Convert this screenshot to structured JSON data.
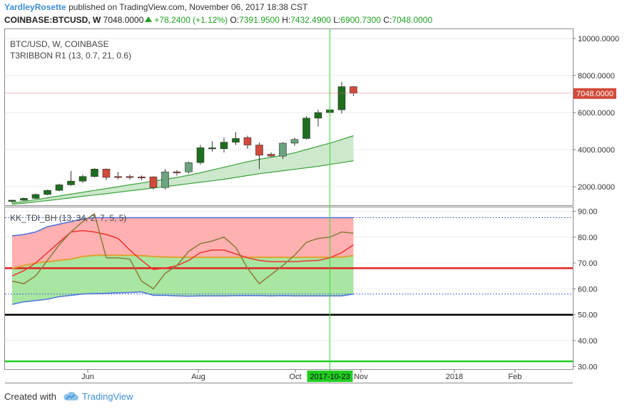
{
  "header": {
    "author": "YardleyRosette",
    "published_text": "published on TradingView.com, November 06, 2017 18:38 CST"
  },
  "symbol_bar": {
    "symbol": "COINBASE:BTCUSD, W",
    "last": "7048.0000",
    "change": "+78.2400 (+1.12%)",
    "o_label": "O:",
    "o": "7391.9500",
    "h_label": "H:",
    "h": "7432.4900",
    "l_label": "L:",
    "l": "6900.7300",
    "c_label": "C:",
    "c": "7048.0000"
  },
  "footer": {
    "created_with": "Created with",
    "brand": "TradingView"
  },
  "colors": {
    "bull": "#1e6e1e",
    "bull_light": "#6aa37e",
    "bear": "#d24a3a",
    "ribbon_fill": "#cde8cc",
    "ribbon_line": "#3aa33a",
    "cursor": "#33dd33",
    "tdi_red_zone": "#ffb0b0",
    "tdi_green_zone": "#a9e6a1",
    "tdi_band": "#4a6ee0",
    "tdi_rsi": "#8a7a3a",
    "tdi_signal": "#ee3333",
    "tdi_mid": "#e0a030",
    "level_red": "#e02020",
    "level_black": "#000000",
    "level_green": "#22cc22"
  },
  "chart_data": [
    {
      "type": "candlestick",
      "title": "BTC/USD, W, COINBASE",
      "indicator": "T3RIBBON R1 (13, 0.7, 21, 0.6)",
      "x_tick_labels": [
        "Jun",
        "Aug",
        "Oct",
        "Nov",
        "2018",
        "Feb"
      ],
      "cursor_label": "2017-10-23",
      "y_ticks": [
        "2000.0000",
        "4000.0000",
        "6000.0000",
        "8000.0000",
        "10000.0000"
      ],
      "ylim": [
        1000,
        10500
      ],
      "last_price_label": "7048.0000",
      "last_price": 7048,
      "candles": [
        {
          "o": 1200,
          "h": 1300,
          "l": 1130,
          "c": 1270,
          "color": "bull"
        },
        {
          "o": 1270,
          "h": 1420,
          "l": 1230,
          "c": 1370,
          "color": "bull"
        },
        {
          "o": 1370,
          "h": 1640,
          "l": 1340,
          "c": 1580,
          "color": "bull"
        },
        {
          "o": 1580,
          "h": 1830,
          "l": 1540,
          "c": 1800,
          "color": "bull"
        },
        {
          "o": 1800,
          "h": 2160,
          "l": 1760,
          "c": 2100,
          "color": "bull"
        },
        {
          "o": 2100,
          "h": 2850,
          "l": 2050,
          "c": 2300,
          "color": "bull"
        },
        {
          "o": 2300,
          "h": 2650,
          "l": 2200,
          "c": 2550,
          "color": "bull"
        },
        {
          "o": 2550,
          "h": 3000,
          "l": 2500,
          "c": 2950,
          "color": "bull"
        },
        {
          "o": 2950,
          "h": 2980,
          "l": 2350,
          "c": 2500,
          "color": "bear"
        },
        {
          "o": 2500,
          "h": 2800,
          "l": 2400,
          "c": 2550,
          "color": "bear"
        },
        {
          "o": 2550,
          "h": 2650,
          "l": 2380,
          "c": 2500,
          "color": "bear"
        },
        {
          "o": 2500,
          "h": 2600,
          "l": 2350,
          "c": 2530,
          "color": "bear"
        },
        {
          "o": 2530,
          "h": 2560,
          "l": 1850,
          "c": 1950,
          "color": "bear"
        },
        {
          "o": 1950,
          "h": 2950,
          "l": 1850,
          "c": 2800,
          "color": "bull_light"
        },
        {
          "o": 2750,
          "h": 2900,
          "l": 2600,
          "c": 2800,
          "color": "bear"
        },
        {
          "o": 2800,
          "h": 3350,
          "l": 2700,
          "c": 3300,
          "color": "bull_light"
        },
        {
          "o": 3300,
          "h": 4250,
          "l": 3200,
          "c": 4100,
          "color": "bull"
        },
        {
          "o": 4100,
          "h": 4450,
          "l": 3900,
          "c": 4050,
          "color": "bull"
        },
        {
          "o": 4050,
          "h": 4650,
          "l": 3850,
          "c": 4400,
          "color": "bull"
        },
        {
          "o": 4400,
          "h": 4950,
          "l": 4250,
          "c": 4600,
          "color": "bull"
        },
        {
          "o": 4650,
          "h": 4750,
          "l": 4050,
          "c": 4250,
          "color": "bear"
        },
        {
          "o": 4250,
          "h": 4380,
          "l": 2950,
          "c": 3700,
          "color": "bear"
        },
        {
          "o": 3750,
          "h": 3850,
          "l": 3600,
          "c": 3650,
          "color": "bear"
        },
        {
          "o": 3650,
          "h": 4400,
          "l": 3500,
          "c": 4350,
          "color": "bull_light"
        },
        {
          "o": 4350,
          "h": 4650,
          "l": 4200,
          "c": 4550,
          "color": "bull_light"
        },
        {
          "o": 4600,
          "h": 5800,
          "l": 4550,
          "c": 5700,
          "color": "bull"
        },
        {
          "o": 5700,
          "h": 6150,
          "l": 5250,
          "c": 6000,
          "color": "bull"
        },
        {
          "o": 6000,
          "h": 6200,
          "l": 5450,
          "c": 6150,
          "color": "bull"
        },
        {
          "o": 6150,
          "h": 7650,
          "l": 5950,
          "c": 7400,
          "color": "bull"
        },
        {
          "o": 7400,
          "h": 7430,
          "l": 6900,
          "c": 7048,
          "color": "bear"
        }
      ],
      "ribbon_upper": [
        1120,
        1200,
        1300,
        1400,
        1500,
        1600,
        1700,
        1800,
        1900,
        2000,
        2100,
        2200,
        2300,
        2400,
        2500,
        2620,
        2750,
        2900,
        3050,
        3200,
        3350,
        3480,
        3580,
        3700,
        3830,
        4000,
        4180,
        4350,
        4550,
        4750
      ],
      "ribbon_lower": [
        1050,
        1110,
        1180,
        1250,
        1320,
        1400,
        1480,
        1550,
        1620,
        1700,
        1780,
        1850,
        1930,
        2010,
        2080,
        2160,
        2240,
        2320,
        2400,
        2500,
        2600,
        2700,
        2780,
        2860,
        2940,
        3020,
        3100,
        3200,
        3300,
        3400
      ]
    },
    {
      "type": "line",
      "title": "KK_TDI_BH (13, 34, 2, 7, 5, 5)",
      "y_ticks": [
        "30.00",
        "40.00",
        "50.00",
        "60.00",
        "70.00",
        "80.00",
        "90.00"
      ],
      "ylim": [
        29,
        91.5
      ],
      "levels": [
        {
          "value": 68,
          "color": "level_red"
        },
        {
          "value": 50,
          "color": "level_black"
        },
        {
          "value": 32,
          "color": "level_green"
        }
      ],
      "dotted_levels": [
        87.5,
        58
      ],
      "series": [
        {
          "key": "band_upper",
          "values": [
            80.5,
            81,
            82,
            84,
            85,
            86,
            87,
            87.5,
            87.5,
            87.5,
            87.5,
            87.5,
            87.5,
            87.5,
            87.5,
            87.5,
            87.5,
            87.5,
            87.5,
            87.5,
            87.5,
            87.5,
            87.5,
            87.5,
            87.5,
            87.5,
            87.5,
            87.5,
            87.5,
            87.5
          ]
        },
        {
          "key": "band_lower",
          "values": [
            54,
            55,
            55.5,
            56,
            57,
            57.5,
            58,
            58.2,
            58.3,
            58.5,
            58.6,
            58.8,
            57.5,
            57.5,
            57.3,
            57.2,
            57.3,
            57.3,
            57.3,
            57.4,
            57.4,
            57.4,
            57.3,
            57.4,
            57.3,
            57.3,
            57.3,
            57.3,
            57.3,
            58
          ]
        },
        {
          "key": "mid",
          "values": [
            68,
            69,
            70,
            70.5,
            71,
            71.5,
            72.5,
            73,
            73,
            73,
            73,
            72.8,
            72.5,
            72.3,
            72.2,
            72.2,
            72.2,
            72.2,
            72.2,
            72.2,
            72.2,
            72.2,
            72.2,
            72.2,
            72.2,
            72.2,
            72.2,
            72.2,
            72.3,
            72.8
          ]
        },
        {
          "key": "signal",
          "values": [
            65,
            67,
            70,
            74,
            78,
            82,
            82.5,
            82,
            81,
            79.5,
            75,
            71,
            67.5,
            68,
            69,
            71,
            74,
            75,
            75,
            73.5,
            72,
            71,
            70.5,
            70.5,
            70.5,
            70.8,
            71,
            72,
            74,
            77
          ]
        },
        {
          "key": "rsi",
          "values": [
            63,
            62,
            65,
            71,
            77,
            82,
            86,
            89,
            72,
            72,
            71.5,
            63,
            60,
            66,
            69,
            74.5,
            77.5,
            78.5,
            80,
            76,
            68,
            62,
            65.5,
            69,
            73,
            78,
            79.5,
            80,
            82,
            81.5
          ]
        }
      ]
    }
  ]
}
